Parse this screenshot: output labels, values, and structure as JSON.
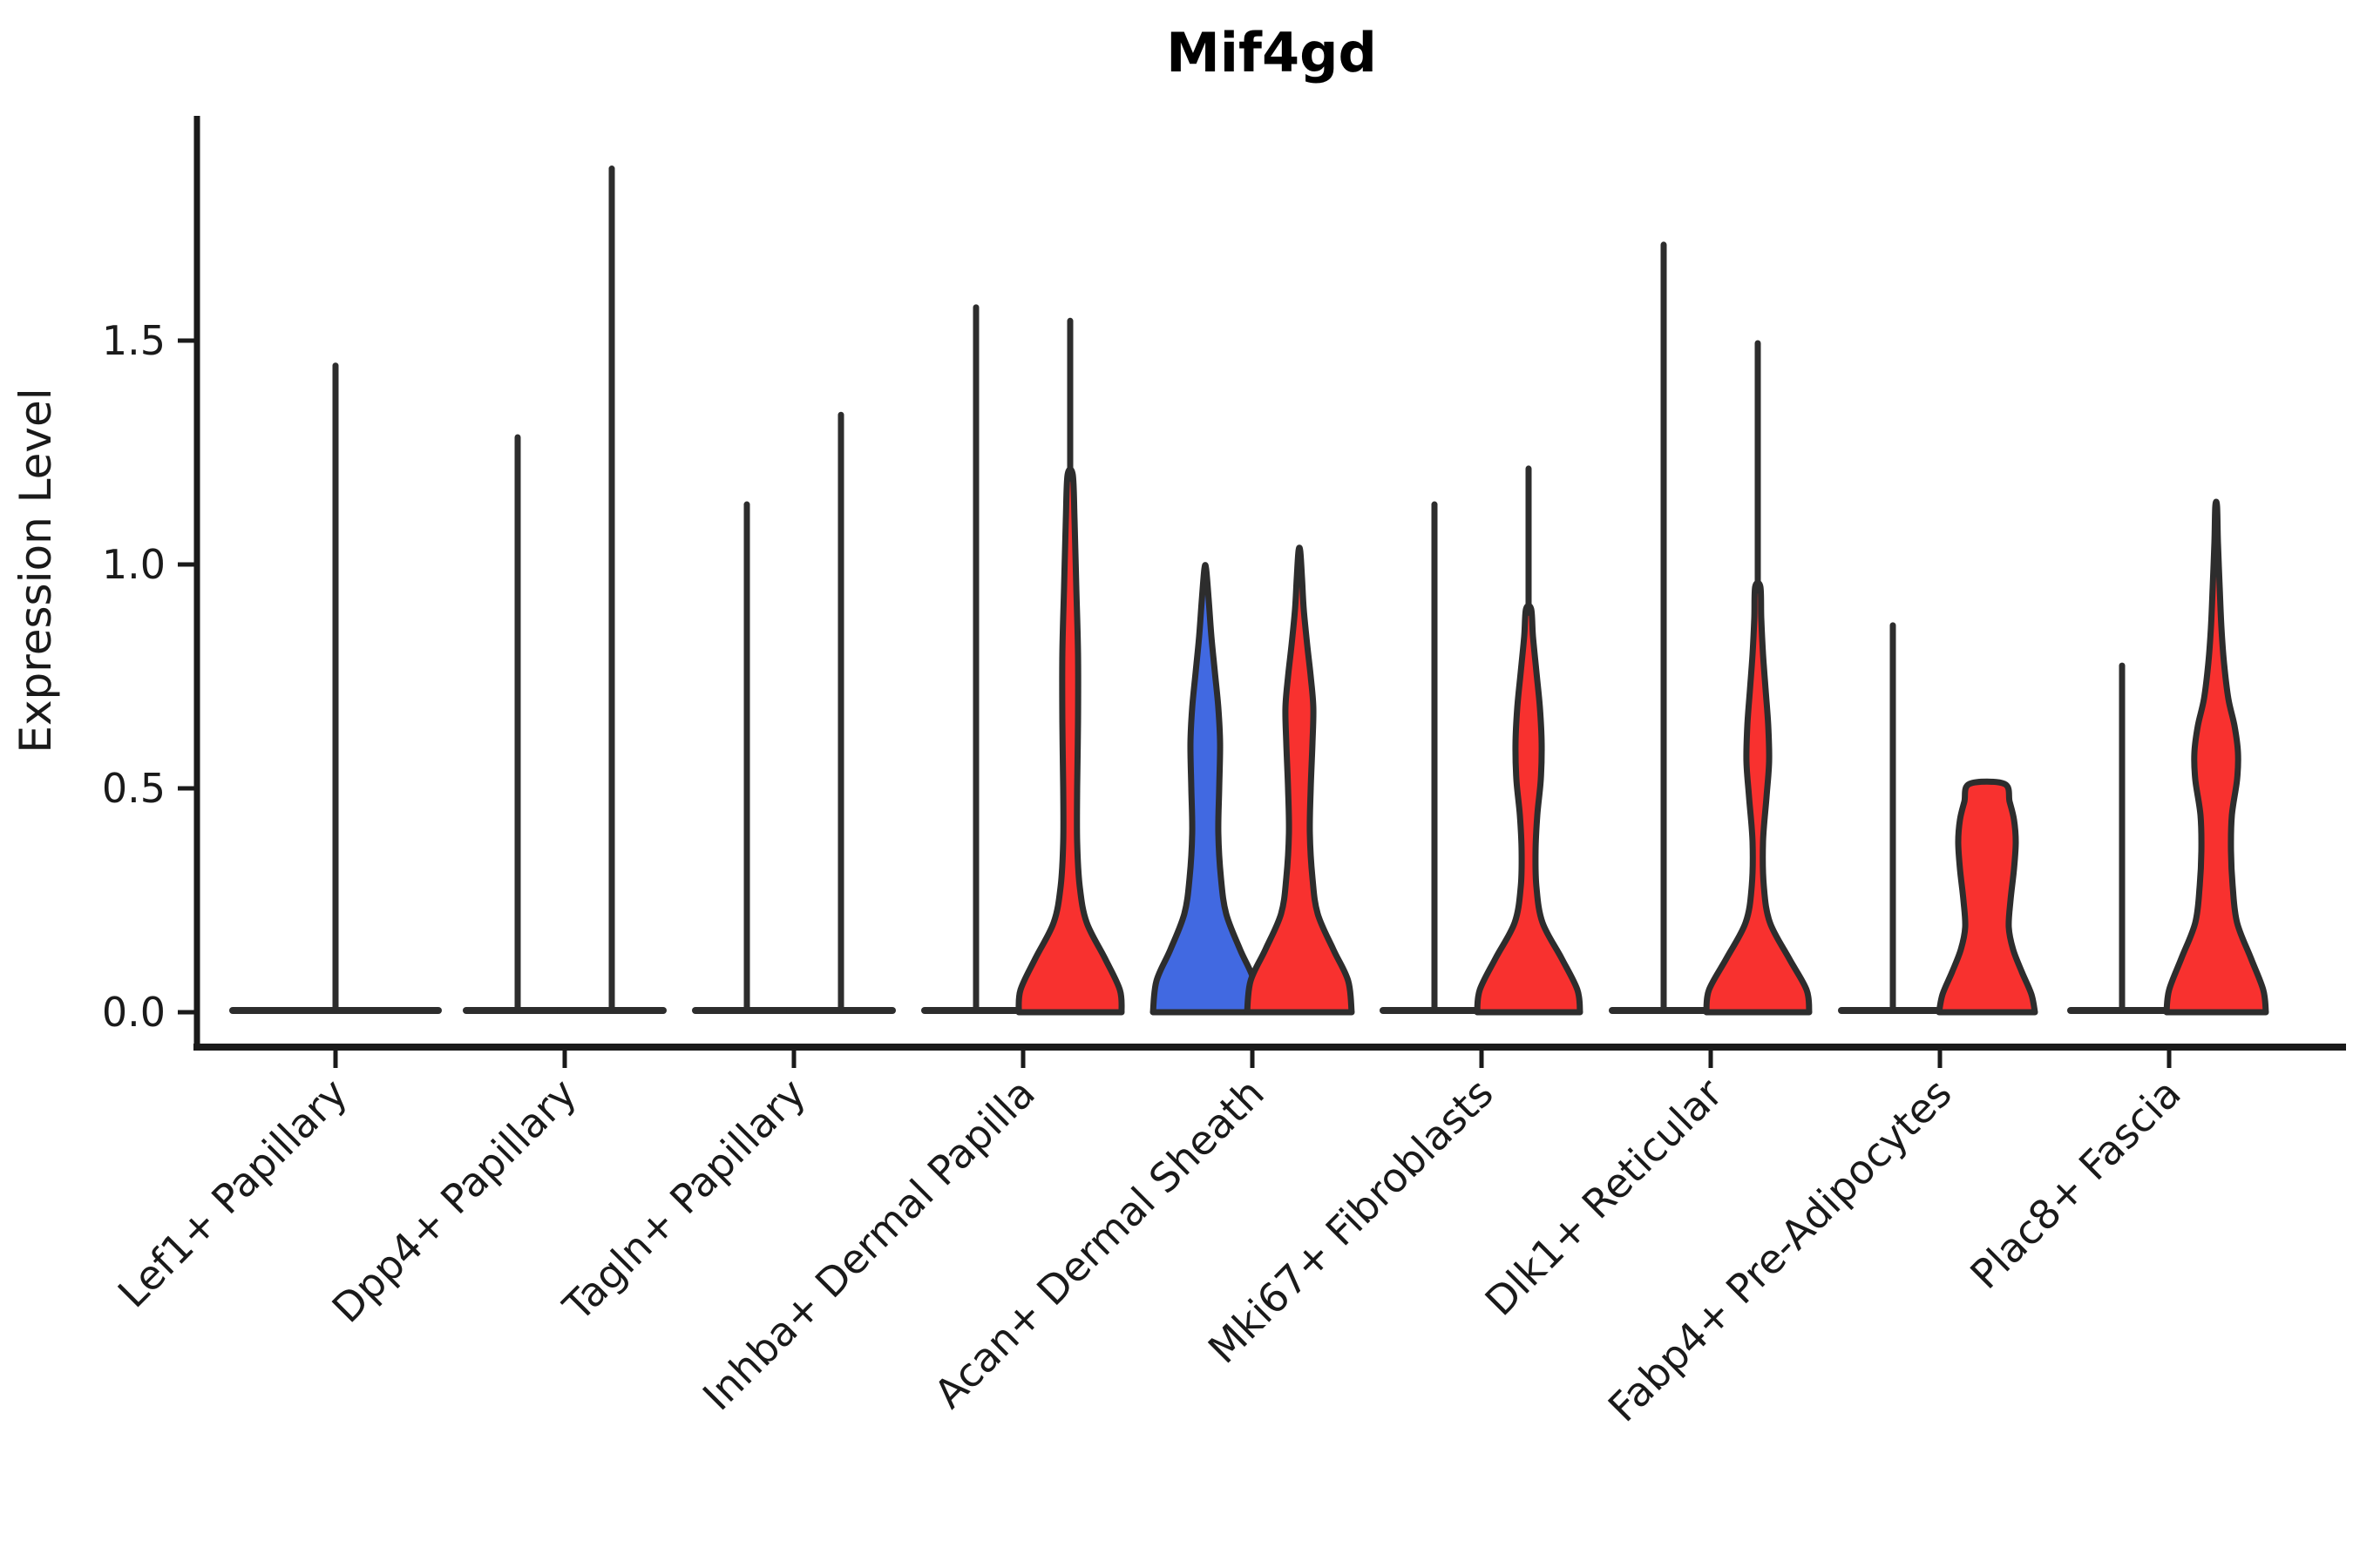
{
  "chart_data": {
    "type": "violin",
    "title": "Mif4gd",
    "xlabel": "",
    "ylabel": "Expression Level",
    "yticks": [
      "0.0",
      "0.5",
      "1.0",
      "1.5"
    ],
    "ylim": [
      -0.09,
      2.0
    ],
    "grid": false,
    "legend": "none",
    "colors": {
      "red": "#F8312F",
      "blue": "#4169E1",
      "outline": "#2D2D2D",
      "axis": "#1A1A1A"
    },
    "categories": [
      {
        "label": "Lef1+ Papillary",
        "violins": [
          {
            "position": "center",
            "color": null,
            "flat": true,
            "max": 1.45
          }
        ]
      },
      {
        "label": "Dpp4+ Papillary",
        "violins": [
          {
            "position": "left",
            "color": null,
            "flat": true,
            "max": 1.29
          },
          {
            "position": "right",
            "color": null,
            "flat": true,
            "max": 1.89
          }
        ]
      },
      {
        "label": "Tagln+ Papillary",
        "violins": [
          {
            "position": "left",
            "color": null,
            "flat": true,
            "max": 1.14
          },
          {
            "position": "right",
            "color": null,
            "flat": true,
            "max": 1.34
          }
        ]
      },
      {
        "label": "Inhba+ Dermal Papilla",
        "violins": [
          {
            "position": "left",
            "color": null,
            "flat": true,
            "max": 1.58
          },
          {
            "position": "right",
            "color": "red",
            "flat": false,
            "max": 1.55,
            "profile": [
              [
                0,
                59
              ],
              [
                0.05,
                57
              ],
              [
                0.12,
                40
              ],
              [
                0.2,
                19
              ],
              [
                0.28,
                11
              ],
              [
                0.38,
                8
              ],
              [
                0.5,
                8
              ],
              [
                0.65,
                9
              ],
              [
                0.8,
                9
              ],
              [
                0.95,
                7
              ],
              [
                1.1,
                5
              ],
              [
                1.2,
                3
              ]
            ]
          }
        ]
      },
      {
        "label": "Acan+ Dermal Sheath",
        "violins": [
          {
            "position": "left",
            "color": "blue",
            "flat": false,
            "max": 0.99,
            "profile": [
              [
                0,
                60
              ],
              [
                0.07,
                56
              ],
              [
                0.14,
                40
              ],
              [
                0.22,
                24
              ],
              [
                0.3,
                18
              ],
              [
                0.4,
                15
              ],
              [
                0.5,
                16
              ],
              [
                0.6,
                17
              ],
              [
                0.68,
                15
              ],
              [
                0.76,
                11
              ],
              [
                0.84,
                7
              ],
              [
                0.92,
                4
              ],
              [
                0.99,
                1
              ]
            ]
          },
          {
            "position": "right",
            "color": "red",
            "flat": false,
            "max": 1.03,
            "profile": [
              [
                0,
                60
              ],
              [
                0.07,
                56
              ],
              [
                0.14,
                39
              ],
              [
                0.22,
                21
              ],
              [
                0.3,
                15
              ],
              [
                0.4,
                12
              ],
              [
                0.5,
                13
              ],
              [
                0.6,
                15
              ],
              [
                0.68,
                16
              ],
              [
                0.75,
                13
              ],
              [
                0.82,
                9
              ],
              [
                0.9,
                5
              ],
              [
                0.97,
                3
              ],
              [
                1.03,
                1
              ]
            ]
          }
        ]
      },
      {
        "label": "Mki67+ Fibroblasts",
        "violins": [
          {
            "position": "left",
            "color": null,
            "flat": true,
            "max": 1.14
          },
          {
            "position": "right",
            "color": "red",
            "flat": false,
            "max": 1.22,
            "profile": [
              [
                0,
                59
              ],
              [
                0.05,
                56
              ],
              [
                0.12,
                38
              ],
              [
                0.2,
                16
              ],
              [
                0.28,
                9
              ],
              [
                0.36,
                8
              ],
              [
                0.44,
                10
              ],
              [
                0.52,
                14
              ],
              [
                0.6,
                15
              ],
              [
                0.68,
                13
              ],
              [
                0.76,
                9
              ],
              [
                0.84,
                5
              ],
              [
                0.9,
                3
              ]
            ]
          }
        ]
      },
      {
        "label": "Dlk1+ Reticular",
        "violins": [
          {
            "position": "left",
            "color": null,
            "flat": true,
            "max": 1.72
          },
          {
            "position": "right",
            "color": "red",
            "flat": false,
            "max": 1.5,
            "profile": [
              [
                0,
                59
              ],
              [
                0.05,
                56
              ],
              [
                0.12,
                36
              ],
              [
                0.2,
                14
              ],
              [
                0.28,
                7
              ],
              [
                0.38,
                6
              ],
              [
                0.48,
                10
              ],
              [
                0.56,
                13
              ],
              [
                0.64,
                12
              ],
              [
                0.72,
                9
              ],
              [
                0.8,
                6
              ],
              [
                0.88,
                4
              ],
              [
                0.95,
                3
              ]
            ]
          }
        ]
      },
      {
        "label": "Fabp4+ Pre-Adipocytes",
        "violins": [
          {
            "position": "left",
            "color": null,
            "flat": true,
            "max": 0.87
          },
          {
            "position": "right",
            "color": "red",
            "flat": false,
            "max": 0.51,
            "flat_top": true,
            "profile": [
              [
                0,
                55
              ],
              [
                0.04,
                51
              ],
              [
                0.09,
                40
              ],
              [
                0.14,
                30
              ],
              [
                0.19,
                25
              ],
              [
                0.25,
                27
              ],
              [
                0.32,
                31
              ],
              [
                0.38,
                33
              ],
              [
                0.43,
                31
              ],
              [
                0.47,
                26
              ],
              [
                0.51,
                20
              ]
            ]
          }
        ]
      },
      {
        "label": "Plac8+ Fascia",
        "violins": [
          {
            "position": "left",
            "color": null,
            "flat": true,
            "max": 0.78
          },
          {
            "position": "right",
            "color": "red",
            "flat": false,
            "max": 1.13,
            "profile": [
              [
                0,
                57
              ],
              [
                0.05,
                54
              ],
              [
                0.12,
                40
              ],
              [
                0.2,
                24
              ],
              [
                0.28,
                19
              ],
              [
                0.36,
                17
              ],
              [
                0.44,
                18
              ],
              [
                0.52,
                24
              ],
              [
                0.58,
                25
              ],
              [
                0.64,
                21
              ],
              [
                0.7,
                14
              ],
              [
                0.78,
                9
              ],
              [
                0.86,
                6
              ],
              [
                0.95,
                4
              ],
              [
                1.05,
                2
              ],
              [
                1.13,
                1
              ]
            ]
          }
        ]
      }
    ]
  }
}
